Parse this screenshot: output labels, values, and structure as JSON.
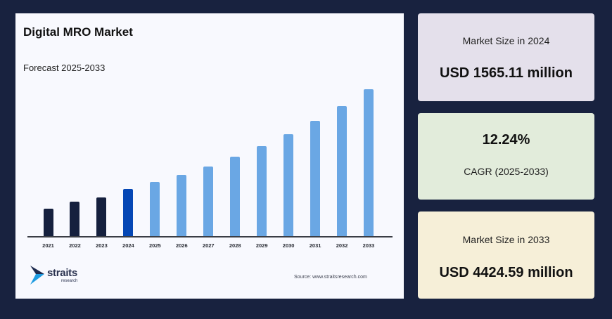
{
  "chart_panel": {
    "title": "Digital MRO Market",
    "subtitle": "Forecast 2025-2033",
    "source": "Source: www.straitsresearch.com",
    "logo": {
      "name": "straits",
      "sub": "research"
    }
  },
  "cards": [
    {
      "label": "Market Size in 2024",
      "value": "USD 1565.11 million",
      "bg": "#e4e0eb"
    },
    {
      "value": "12.24%",
      "label": "CAGR (2025-2033)",
      "bg": "#e2ecdb"
    },
    {
      "label": "Market Size in 2033",
      "value": "USD 4424.59 million",
      "bg": "#f6efd8"
    }
  ],
  "colors": {
    "background": "#18223f",
    "historical": "#15203e",
    "base_year": "#0547b5",
    "forecast": "#6aa7e4"
  },
  "chart_data": {
    "type": "bar",
    "title": "Digital MRO Market",
    "subtitle": "Forecast 2025-2033",
    "xlabel": "",
    "ylabel": "",
    "unit": "USD million (estimated from bar heights)",
    "categories": [
      "2021",
      "2022",
      "2023",
      "2024",
      "2025",
      "2026",
      "2027",
      "2028",
      "2029",
      "2030",
      "2031",
      "2032",
      "2033"
    ],
    "values": [
      1000,
      1200,
      1320,
      1565.11,
      1757,
      1972,
      2213,
      2484,
      2788,
      3129,
      3512,
      3942,
      4424.59
    ],
    "bar_groups": [
      "historical",
      "historical",
      "historical",
      "base_year",
      "forecast",
      "forecast",
      "forecast",
      "forecast",
      "forecast",
      "forecast",
      "forecast",
      "forecast",
      "forecast"
    ],
    "ylim": [
      215,
      4425
    ],
    "grid": false,
    "legend": null,
    "annotations": [
      "Market Size in 2024: USD 1565.11 million",
      "CAGR (2025-2033): 12.24%",
      "Market Size in 2033: USD 4424.59 million"
    ]
  }
}
